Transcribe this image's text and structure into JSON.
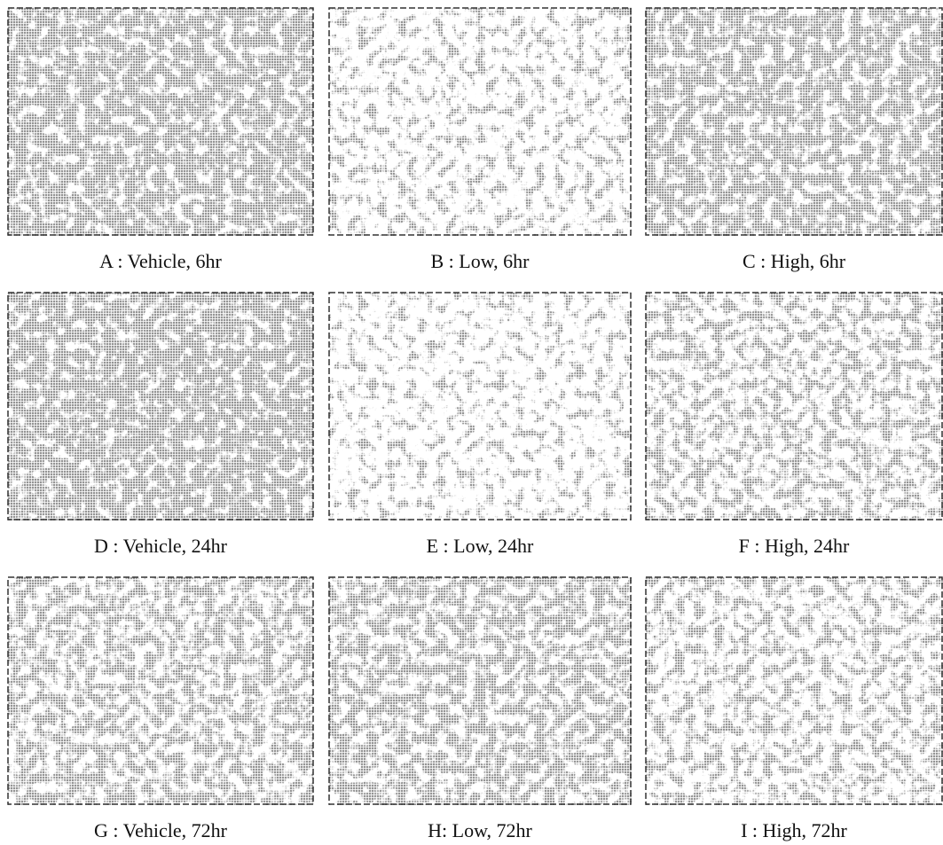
{
  "panels": [
    {
      "caption": "A : Vehicle, 6hr"
    },
    {
      "caption": "B : Low, 6hr"
    },
    {
      "caption": "C : High, 6hr"
    },
    {
      "caption": "D : Vehicle, 24hr"
    },
    {
      "caption": "E : Low, 24hr"
    },
    {
      "caption": "F : High, 24hr"
    },
    {
      "caption": "G : Vehicle, 72hr"
    },
    {
      "caption": "H: Low, 72hr"
    },
    {
      "caption": "I : High, 72hr"
    }
  ]
}
